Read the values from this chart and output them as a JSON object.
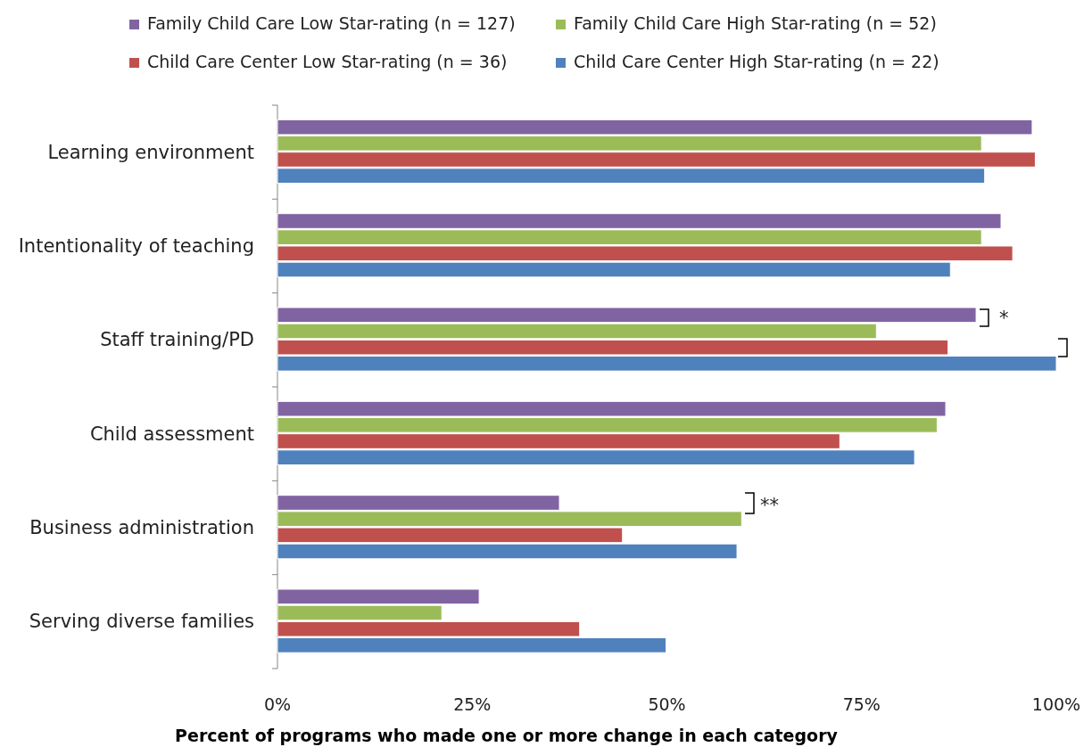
{
  "chart_data": {
    "type": "bar",
    "orientation": "horizontal",
    "xlabel": "Percent of programs who made one or more change in each category",
    "categories": [
      "Learning environment",
      "Intentionality of teaching",
      "Staff training/PD",
      "Child assessment",
      "Business administration",
      "Serving diverse families"
    ],
    "series": [
      {
        "name": "Family Child Care Low Star-rating (n = 127)",
        "color": "#8064a2",
        "values": [
          96.9,
          92.9,
          89.7,
          85.8,
          36.2,
          25.9
        ]
      },
      {
        "name": "Family Child Care High Star-rating (n = 52)",
        "color": "#9bbb59",
        "values": [
          90.4,
          90.4,
          76.9,
          84.7,
          59.6,
          21.1
        ]
      },
      {
        "name": "Child Care Center Low Star-rating (n = 36)",
        "color": "#c0504d",
        "values": [
          97.3,
          94.4,
          86.1,
          72.2,
          44.3,
          38.8
        ]
      },
      {
        "name": "Child Care Center High Star-rating (n = 22)",
        "color": "#4f81bd",
        "values": [
          90.8,
          86.4,
          100,
          81.8,
          59.0,
          49.9
        ]
      }
    ],
    "xlim": [
      0,
      100
    ],
    "xticks": [
      {
        "value": 0,
        "label": "0%"
      },
      {
        "value": 25,
        "label": "25%"
      },
      {
        "value": 50,
        "label": "50%"
      },
      {
        "value": 75,
        "label": "75%"
      },
      {
        "value": 100,
        "label": "100%"
      }
    ],
    "annotations": [
      "*",
      "**"
    ],
    "legend": "top",
    "grid": false
  }
}
